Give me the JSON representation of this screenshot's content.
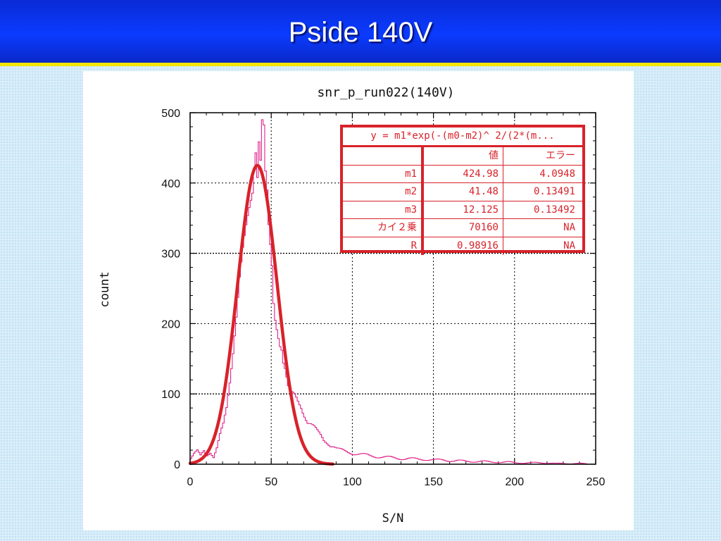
{
  "slide": {
    "title": "Pside 140V"
  },
  "chart_data": {
    "type": "histogram",
    "title": "snr_p_run022(140V)",
    "xlabel": "S/N",
    "ylabel": "count",
    "xlim": [
      0,
      250
    ],
    "ylim": [
      0,
      500
    ],
    "xticks": [
      "0",
      "50",
      "100",
      "150",
      "200",
      "250"
    ],
    "yticks": [
      "0",
      "100",
      "200",
      "300",
      "400",
      "500"
    ],
    "grid": true,
    "bin_width": 1,
    "histogram": {
      "color": "#e0218a",
      "points": [
        [
          0,
          8
        ],
        [
          2,
          14
        ],
        [
          4,
          18
        ],
        [
          6,
          12
        ],
        [
          8,
          20
        ],
        [
          10,
          14
        ],
        [
          12,
          18
        ],
        [
          14,
          10
        ],
        [
          16,
          22
        ],
        [
          18,
          40
        ],
        [
          20,
          55
        ],
        [
          22,
          80
        ],
        [
          24,
          120
        ],
        [
          26,
          165
        ],
        [
          28,
          215
        ],
        [
          30,
          265
        ],
        [
          32,
          300
        ],
        [
          34,
          330
        ],
        [
          36,
          360
        ],
        [
          38,
          390
        ],
        [
          39,
          430
        ],
        [
          40,
          455
        ],
        [
          41,
          420
        ],
        [
          42,
          470
        ],
        [
          43,
          440
        ],
        [
          44,
          493
        ],
        [
          45,
          480
        ],
        [
          46,
          410
        ],
        [
          47,
          380
        ],
        [
          48,
          330
        ],
        [
          50,
          275
        ],
        [
          51,
          225
        ],
        [
          52,
          205
        ],
        [
          53,
          195
        ],
        [
          54,
          185
        ],
        [
          55,
          175
        ],
        [
          56,
          170
        ],
        [
          57,
          150
        ],
        [
          58,
          140
        ],
        [
          59,
          125
        ],
        [
          60,
          110
        ],
        [
          62,
          98
        ],
        [
          64,
          95
        ],
        [
          66,
          88
        ],
        [
          68,
          82
        ],
        [
          70,
          72
        ],
        [
          72,
          62
        ],
        [
          74,
          58
        ],
        [
          76,
          52
        ],
        [
          78,
          45
        ],
        [
          80,
          40
        ],
        [
          82,
          34
        ],
        [
          84,
          32
        ],
        [
          86,
          28
        ],
        [
          88,
          26
        ],
        [
          90,
          22
        ],
        [
          92,
          20
        ],
        [
          95,
          18
        ],
        [
          100,
          16
        ],
        [
          105,
          14
        ],
        [
          110,
          12
        ],
        [
          115,
          11
        ],
        [
          120,
          10
        ],
        [
          125,
          9
        ],
        [
          130,
          8
        ],
        [
          135,
          8
        ],
        [
          140,
          7
        ],
        [
          145,
          7
        ],
        [
          150,
          6
        ],
        [
          155,
          6
        ],
        [
          160,
          5
        ],
        [
          165,
          5
        ],
        [
          170,
          4
        ],
        [
          175,
          4
        ],
        [
          180,
          4
        ],
        [
          185,
          3
        ],
        [
          190,
          3
        ],
        [
          195,
          3
        ],
        [
          200,
          2
        ],
        [
          205,
          2
        ],
        [
          210,
          2
        ],
        [
          215,
          2
        ],
        [
          220,
          2
        ],
        [
          225,
          1
        ],
        [
          230,
          1
        ],
        [
          235,
          1
        ],
        [
          240,
          1
        ],
        [
          245,
          0
        ]
      ]
    },
    "fit": {
      "color": "#d8222a",
      "model": "gaussian",
      "m1": 424.98,
      "m2": 41.48,
      "m3": 12.125,
      "x_range": [
        0,
        88
      ]
    }
  },
  "fit_table": {
    "formula": "y = m1*exp(-(m0-m2)^ 2/(2*(m...",
    "header": [
      "",
      "値",
      "エラー"
    ],
    "rows": [
      [
        "m1",
        "424.98",
        "4.0948"
      ],
      [
        "m2",
        "41.48",
        "0.13491"
      ],
      [
        "m3",
        "12.125",
        "0.13492"
      ],
      [
        "カイ２乗",
        "70160",
        "NA"
      ],
      [
        "R",
        "0.98916",
        "NA"
      ]
    ]
  }
}
